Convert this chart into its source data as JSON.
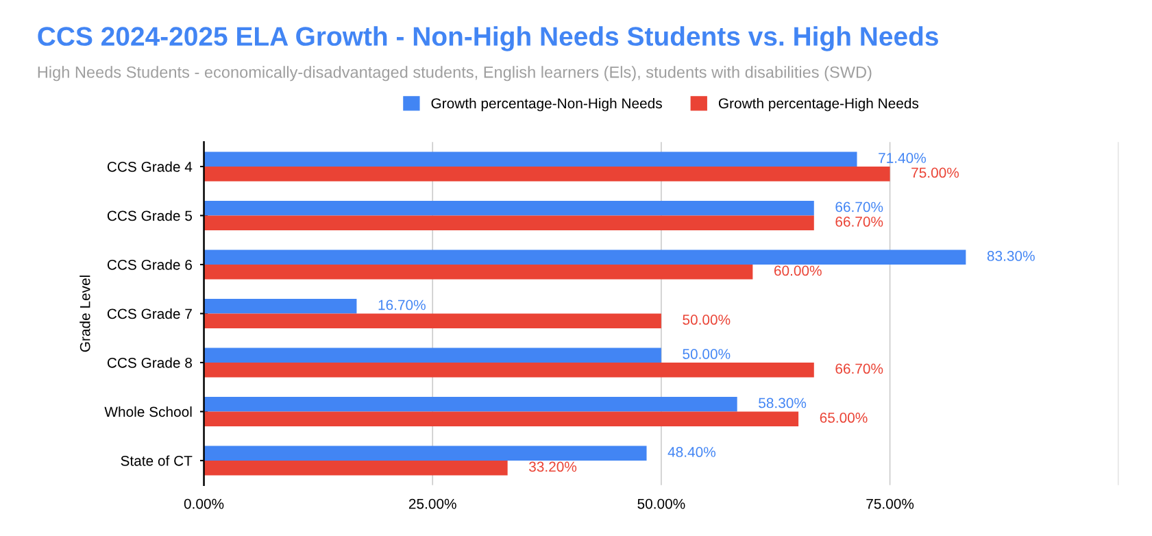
{
  "chart_data": {
    "type": "bar",
    "orientation": "horizontal",
    "title": "CCS 2024-2025 ELA Growth - Non-High Needs Students vs. High Needs",
    "subtitle": "High Needs Students - economically-disadvantaged students, English learners (Els), students with disabilities (SWD)",
    "ylabel": "Grade Level",
    "categories": [
      "CCS Grade 4",
      "CCS Grade 5",
      "CCS Grade 6",
      "CCS Grade 7",
      "CCS Grade 8",
      "Whole School",
      "State of CT"
    ],
    "series": [
      {
        "name": "Growth percentage-Non-High Needs",
        "color": "#4285f4",
        "values": [
          71.4,
          66.7,
          83.3,
          16.7,
          50.0,
          58.3,
          48.4
        ],
        "value_labels": [
          "71.40%",
          "66.70%",
          "83.30%",
          "16.70%",
          "50.00%",
          "58.30%",
          "48.40%"
        ]
      },
      {
        "name": "Growth percentage-High Needs",
        "color": "#ea4335",
        "values": [
          75.0,
          66.7,
          60.0,
          50.0,
          66.7,
          65.0,
          33.2
        ],
        "value_labels": [
          "75.00%",
          "66.70%",
          "60.00%",
          "50.00%",
          "66.70%",
          "65.00%",
          "33.20%"
        ]
      }
    ],
    "xlim": [
      0,
      100
    ],
    "xticks": [
      {
        "value": 0,
        "label": "0.00%"
      },
      {
        "value": 25,
        "label": "25.00%"
      },
      {
        "value": 50,
        "label": "50.00%"
      },
      {
        "value": 75,
        "label": "75.00%"
      },
      {
        "value": 100,
        "label": null
      }
    ],
    "grid": "x",
    "legend": "top"
  }
}
